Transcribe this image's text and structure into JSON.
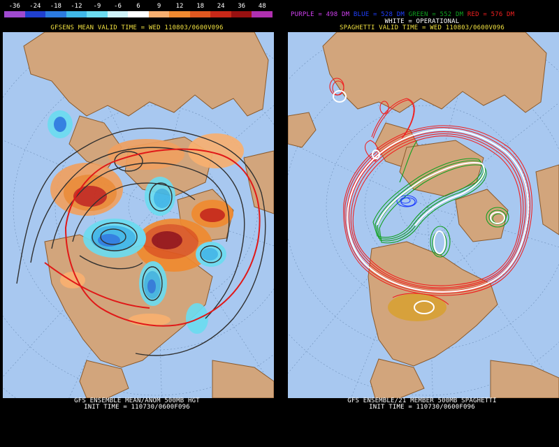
{
  "left_panel": {
    "scale_ticks": [
      "-36",
      "-24",
      "-18",
      "-12",
      "-9",
      "-6",
      "6",
      "9",
      "12",
      "18",
      "24",
      "36",
      "48"
    ],
    "scale_colors": [
      "#a04ad0",
      "#2040d0",
      "#2c7be0",
      "#40b8e8",
      "#6cdcf0",
      "#d0f4fa",
      "#ffffff",
      "#f8b070",
      "#f08a30",
      "#e05820",
      "#c82818",
      "#981010",
      "#b030b0"
    ],
    "title": "GFSENS MEAN VALID TIME = WED 110803/0600V096",
    "footer_line1": "GFS ENSEMBLE MEAN/ANOM 500MB HGT",
    "footer_line2": "INIT TIME = 110730/0600F096"
  },
  "right_panel": {
    "legend": {
      "purple": "PURPLE = 498 DM",
      "blue": "BLUE = 528 DM",
      "green": "GREEN = 552 DM",
      "red": "RED = 576 DM",
      "white": "WHITE = OPERATIONAL"
    },
    "title": "SPAGHETTI VALID TIME = WED 110803/0600V096",
    "footer_line1": "GFS ENSEMBLE/21 MEMBER 500MB SPAGHETTI",
    "footer_line2": "INIT TIME = 110730/0600F096"
  },
  "colors": {
    "ocean": "#a8c8f0",
    "land": "#d2a57c",
    "coast": "#8b5a2b",
    "purple": "#d040f0",
    "blue": "#2040ff",
    "green": "#10a020",
    "red": "#f02020",
    "white": "#ffffff",
    "title_yellow": "#f0e040"
  }
}
